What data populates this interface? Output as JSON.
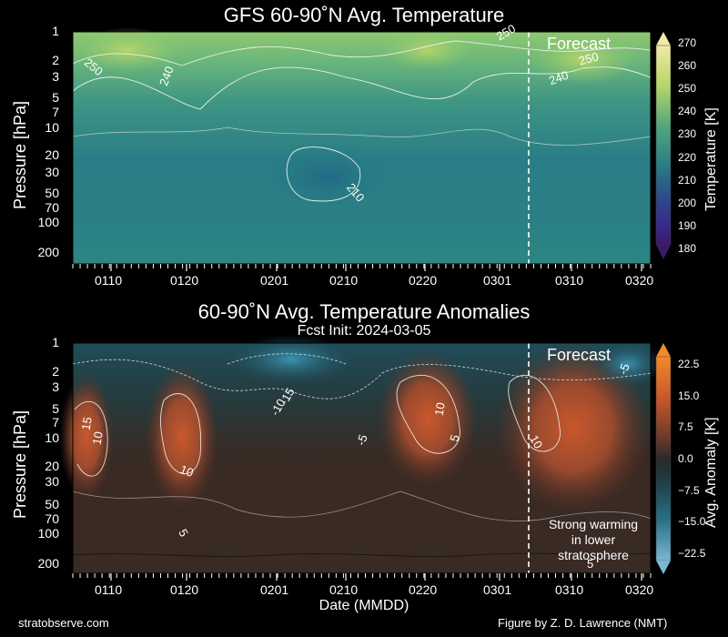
{
  "chart_data": [
    {
      "type": "heatmap",
      "title": "GFS 60-90˚N Avg. Temperature",
      "ylabel": "Pressure [hPa]",
      "xlabel": "",
      "x_ticks": [
        "0110",
        "0120",
        "0201",
        "0210",
        "0220",
        "0301",
        "0310",
        "0320"
      ],
      "y_ticks": [
        "1",
        "2",
        "3",
        "5",
        "7",
        "10",
        "20",
        "30",
        "50",
        "70",
        "100",
        "200"
      ],
      "yscale": "log",
      "colorbar_label": "Temperature [K]",
      "colorbar_ticks": [
        "270",
        "260",
        "250",
        "240",
        "230",
        "220",
        "210",
        "200",
        "190",
        "180"
      ],
      "contour_labels": [
        "250",
        "240",
        "210",
        "250",
        "240",
        "250"
      ],
      "annotation": "Forecast",
      "forecast_init_date": "0305"
    },
    {
      "type": "heatmap",
      "title": "60-90˚N Avg. Temperature Anomalies",
      "subtitle": "Fcst Init: 2024-03-05",
      "ylabel": "Pressure [hPa]",
      "xlabel": "Date (MMDD)",
      "x_ticks": [
        "0110",
        "0120",
        "0201",
        "0210",
        "0220",
        "0301",
        "0310",
        "0320"
      ],
      "y_ticks": [
        "1",
        "2",
        "3",
        "5",
        "7",
        "10",
        "20",
        "30",
        "50",
        "70",
        "100",
        "200"
      ],
      "yscale": "log",
      "colorbar_label": "Avg. Anomaly [K]",
      "colorbar_ticks": [
        "22.5",
        "15.0",
        "7.5",
        "0.0",
        "−7.5",
        "−15.0",
        "−22.5"
      ],
      "contour_labels": [
        "15",
        "10",
        "10",
        "5",
        "-10",
        "-15",
        "-5",
        "10",
        "5",
        "10",
        "-5",
        "5"
      ],
      "annotation": "Forecast",
      "note": "Strong warming\nin lower\nstratosphere"
    }
  ],
  "footer": {
    "left": "stratobserve.com",
    "right": "Figure by Z. D. Lawrence (NMT)"
  },
  "colors": {
    "background": "#000000",
    "forecast_line": "#ffffff"
  }
}
